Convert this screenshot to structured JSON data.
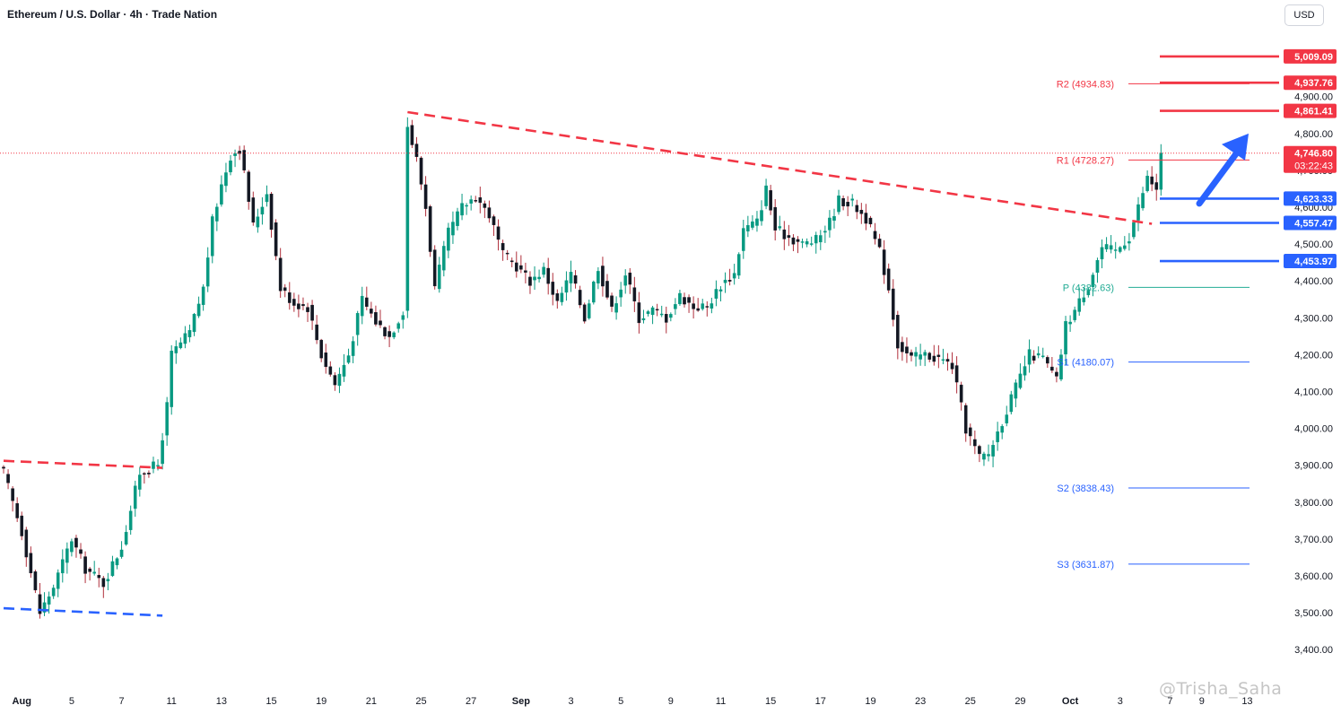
{
  "header": {
    "title": "Ethereum / U.S. Dollar · 4h · Trade Nation",
    "currency": "USD"
  },
  "watermark": "@Trisha_Saha",
  "chart_data": {
    "type": "candlestick",
    "title": "Ethereum / U.S. Dollar · 4h · Trade Nation",
    "ylim": [
      3320,
      5060
    ],
    "y_ticks": [
      3400,
      3500,
      3600,
      3700,
      3800,
      3900,
      4000,
      4100,
      4200,
      4300,
      4400,
      4500,
      4600,
      4700,
      4800,
      4900
    ],
    "y_tick_labels": [
      "3,400.00",
      "3,500.00",
      "3,600.00",
      "3,700.00",
      "3,800.00",
      "3,900.00",
      "4,000.00",
      "4,100.00",
      "4,200.00",
      "4,300.00",
      "4,400.00",
      "4,500.00",
      "4,600.00",
      "4,700.00",
      "4,800.00",
      "4,900.00"
    ],
    "x_ticks": [
      {
        "label": "Aug",
        "bold": true,
        "i": 4
      },
      {
        "label": "5",
        "i": 15
      },
      {
        "label": "7",
        "i": 26
      },
      {
        "label": "11",
        "i": 37
      },
      {
        "label": "13",
        "i": 48
      },
      {
        "label": "15",
        "i": 59
      },
      {
        "label": "19",
        "i": 70
      },
      {
        "label": "21",
        "i": 81
      },
      {
        "label": "25",
        "i": 92
      },
      {
        "label": "27",
        "i": 103
      },
      {
        "label": "Sep",
        "bold": true,
        "i": 114
      },
      {
        "label": "3",
        "i": 125
      },
      {
        "label": "5",
        "i": 136
      },
      {
        "label": "9",
        "i": 147
      },
      {
        "label": "11",
        "i": 158
      },
      {
        "label": "15",
        "i": 169
      },
      {
        "label": "17",
        "i": 180
      },
      {
        "label": "19",
        "i": 191
      },
      {
        "label": "23",
        "i": 202
      },
      {
        "label": "25",
        "i": 213
      },
      {
        "label": "29",
        "i": 224
      },
      {
        "label": "Oct",
        "bold": true,
        "i": 235
      },
      {
        "label": "3",
        "i": 246
      },
      {
        "label": "7",
        "i": 257
      },
      {
        "label": "9",
        "i": 264
      },
      {
        "label": "13",
        "i": 274
      }
    ],
    "anchors": [
      [
        0,
        3880
      ],
      [
        4,
        3720
      ],
      [
        8,
        3500
      ],
      [
        11,
        3570
      ],
      [
        15,
        3700
      ],
      [
        18,
        3620
      ],
      [
        22,
        3580
      ],
      [
        26,
        3680
      ],
      [
        30,
        3880
      ],
      [
        34,
        3900
      ],
      [
        36,
        4060
      ],
      [
        37,
        4200
      ],
      [
        41,
        4260
      ],
      [
        44,
        4380
      ],
      [
        46,
        4560
      ],
      [
        48,
        4660
      ],
      [
        50,
        4740
      ],
      [
        52,
        4760
      ],
      [
        55,
        4550
      ],
      [
        58,
        4640
      ],
      [
        61,
        4380
      ],
      [
        64,
        4340
      ],
      [
        67,
        4330
      ],
      [
        70,
        4200
      ],
      [
        73,
        4120
      ],
      [
        76,
        4200
      ],
      [
        79,
        4350
      ],
      [
        82,
        4290
      ],
      [
        85,
        4250
      ],
      [
        88,
        4320
      ],
      [
        89,
        4820
      ],
      [
        91,
        4730
      ],
      [
        93,
        4600
      ],
      [
        95,
        4380
      ],
      [
        98,
        4530
      ],
      [
        101,
        4600
      ],
      [
        104,
        4630
      ],
      [
        107,
        4580
      ],
      [
        110,
        4470
      ],
      [
        113,
        4440
      ],
      [
        116,
        4400
      ],
      [
        119,
        4430
      ],
      [
        122,
        4340
      ],
      [
        125,
        4420
      ],
      [
        128,
        4300
      ],
      [
        131,
        4440
      ],
      [
        134,
        4320
      ],
      [
        137,
        4420
      ],
      [
        140,
        4300
      ],
      [
        143,
        4320
      ],
      [
        146,
        4300
      ],
      [
        149,
        4360
      ],
      [
        152,
        4330
      ],
      [
        155,
        4330
      ],
      [
        158,
        4390
      ],
      [
        161,
        4420
      ],
      [
        163,
        4540
      ],
      [
        166,
        4560
      ],
      [
        168,
        4650
      ],
      [
        170,
        4540
      ],
      [
        173,
        4520
      ],
      [
        176,
        4500
      ],
      [
        179,
        4510
      ],
      [
        182,
        4560
      ],
      [
        184,
        4620
      ],
      [
        187,
        4610
      ],
      [
        190,
        4570
      ],
      [
        193,
        4480
      ],
      [
        195,
        4380
      ],
      [
        197,
        4230
      ],
      [
        200,
        4190
      ],
      [
        203,
        4200
      ],
      [
        206,
        4190
      ],
      [
        209,
        4170
      ],
      [
        212,
        4000
      ],
      [
        215,
        3920
      ],
      [
        217,
        3930
      ],
      [
        220,
        4020
      ],
      [
        223,
        4110
      ],
      [
        226,
        4200
      ],
      [
        229,
        4190
      ],
      [
        232,
        4130
      ],
      [
        234,
        4280
      ],
      [
        236,
        4320
      ],
      [
        239,
        4390
      ],
      [
        242,
        4490
      ],
      [
        245,
        4480
      ],
      [
        248,
        4520
      ],
      [
        250,
        4600
      ],
      [
        252,
        4680
      ],
      [
        254,
        4650
      ],
      [
        255,
        4747
      ]
    ],
    "last_price": "4,746.80",
    "countdown": "03:22:43",
    "levels": [
      {
        "name": "resistance",
        "value": 5009.09,
        "label": "5,009.09",
        "color": "#f23645"
      },
      {
        "name": "resistance",
        "value": 4937.76,
        "label": "4,937.76",
        "color": "#f23645"
      },
      {
        "name": "resistance",
        "value": 4861.41,
        "label": "4,861.41",
        "color": "#f23645"
      },
      {
        "name": "support",
        "value": 4623.33,
        "label": "4,623.33",
        "color": "#2962ff"
      },
      {
        "name": "support",
        "value": 4557.47,
        "label": "4,557.47",
        "color": "#2962ff"
      },
      {
        "name": "support",
        "value": 4453.97,
        "label": "4,453.97",
        "color": "#2962ff"
      }
    ],
    "pivots": [
      {
        "label": "R2 (4934.83)",
        "value": 4934.83,
        "color": "#f23645"
      },
      {
        "label": "R1 (4728.27)",
        "value": 4728.27,
        "color": "#f23645"
      },
      {
        "label": "P (4382.63)",
        "value": 4382.63,
        "color": "#22ab94"
      },
      {
        "label": "S1 (4180.07)",
        "value": 4180.07,
        "color": "#2962ff"
      },
      {
        "label": "S2 (3838.43)",
        "value": 3838.43,
        "color": "#2962ff"
      },
      {
        "label": "S3 (3631.87)",
        "value": 3631.87,
        "color": "#2962ff"
      }
    ],
    "trendlines": [
      {
        "name": "downtrend-resistance",
        "color": "#f23645",
        "from": [
          89,
          4858
        ],
        "to": [
          253,
          4555
        ]
      },
      {
        "name": "early-resistance",
        "color": "#f23645",
        "from": [
          0,
          3912
        ],
        "to": [
          35,
          3893
        ]
      },
      {
        "name": "early-support",
        "color": "#2962ff",
        "from": [
          0,
          3512
        ],
        "to": [
          35,
          3492
        ]
      }
    ],
    "colors": {
      "up": "#089981",
      "down": "#f23645",
      "candle": "#131722"
    }
  }
}
